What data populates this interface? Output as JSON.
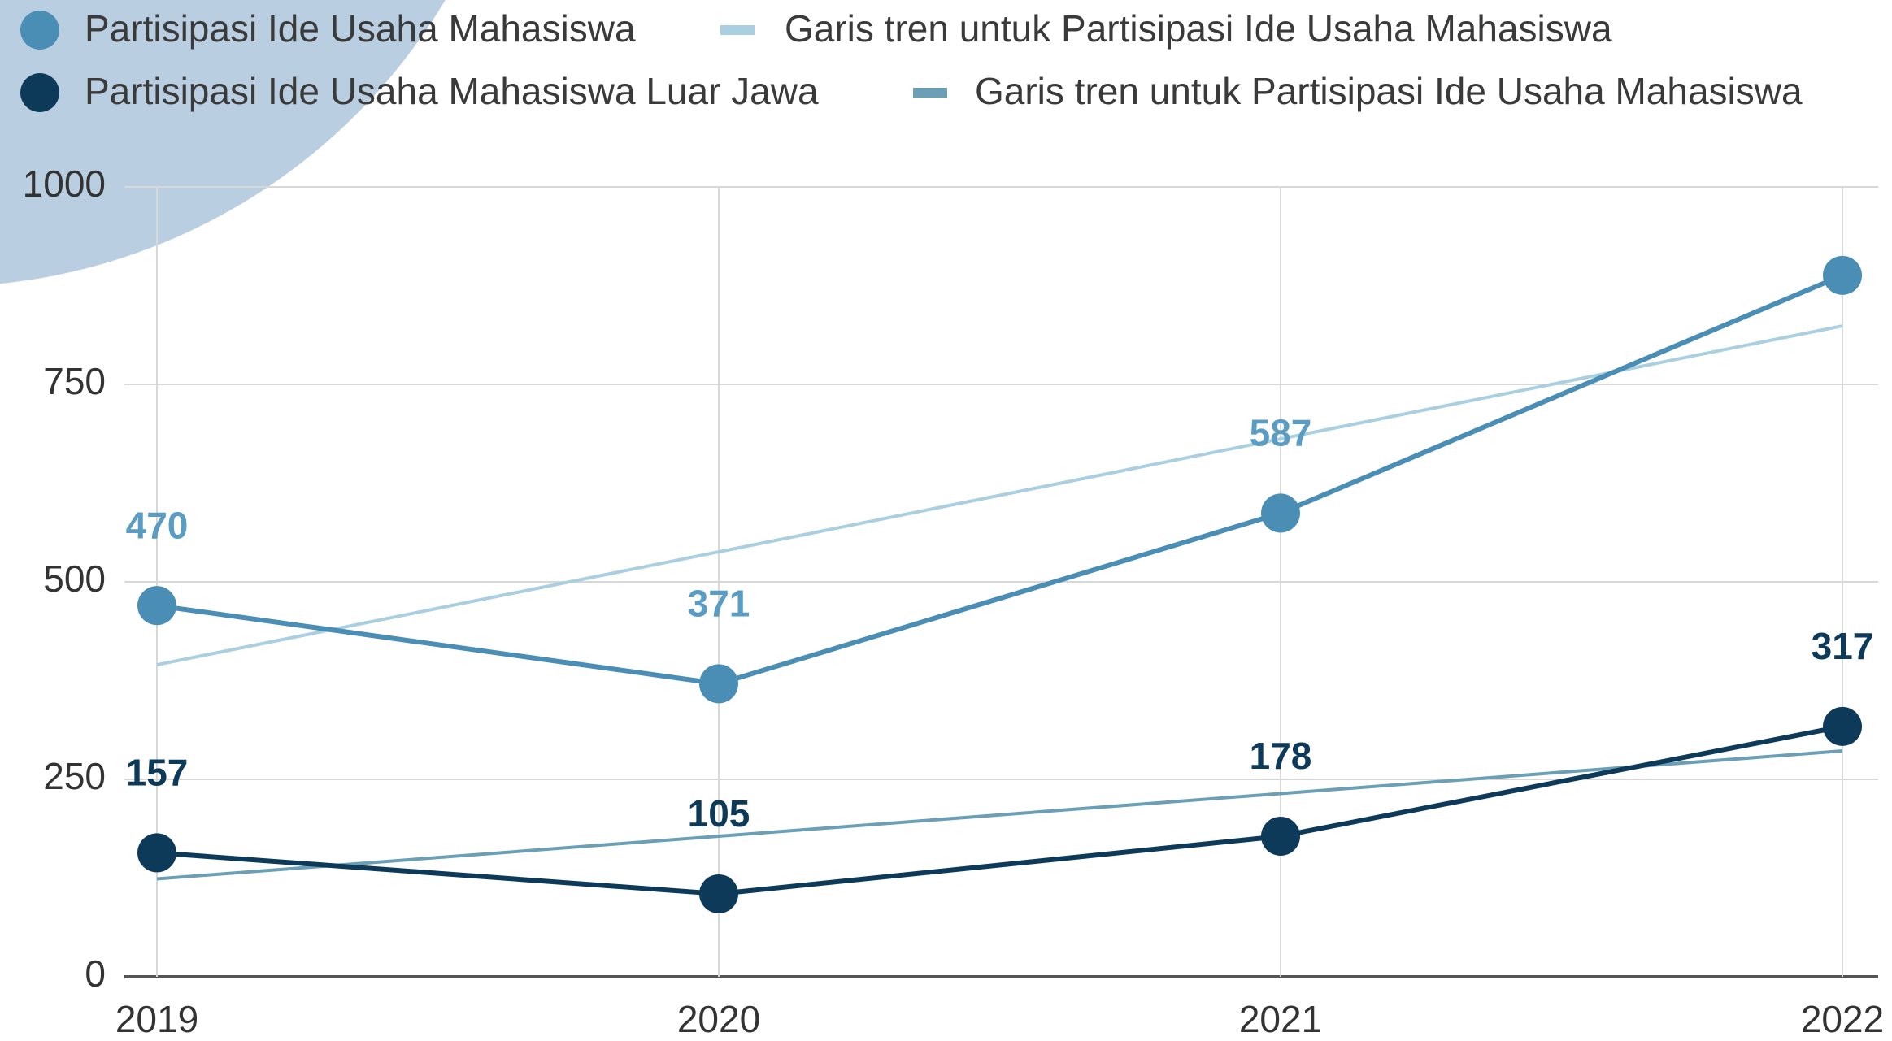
{
  "chart_data": {
    "type": "line",
    "categories": [
      "2019",
      "2020",
      "2021",
      "2022"
    ],
    "series": [
      {
        "name": "Partisipasi Ide Usaha Mahasiswa",
        "color": "#4a8db5",
        "label_color": "#5b9cc2",
        "markers": true,
        "values": [
          470,
          371,
          587,
          888
        ],
        "value_labels": [
          "470",
          "371",
          "587",
          null
        ]
      },
      {
        "name": "Garis tren untuk Partisipasi Ide Usaha Mahasiswa",
        "color": "#a9cfe0",
        "markers": false,
        "values": [
          395,
          538,
          681,
          824
        ]
      },
      {
        "name": "Partisipasi Ide Usaha Mahasiswa Luar Jawa",
        "color": "#0e3a5a",
        "label_color": "#0e3a5a",
        "markers": true,
        "values": [
          157,
          105,
          178,
          317
        ],
        "value_labels": [
          "157",
          "105",
          "178",
          "317"
        ]
      },
      {
        "name": "Garis tren untuk Partisipasi Ide Usaha Mahasiswa",
        "color": "#6b9fb5",
        "markers": false,
        "values": [
          124,
          178,
          232,
          286
        ]
      }
    ],
    "ylim": [
      0,
      1000
    ],
    "yticks": [
      0,
      250,
      500,
      750,
      1000
    ],
    "grid": true
  }
}
